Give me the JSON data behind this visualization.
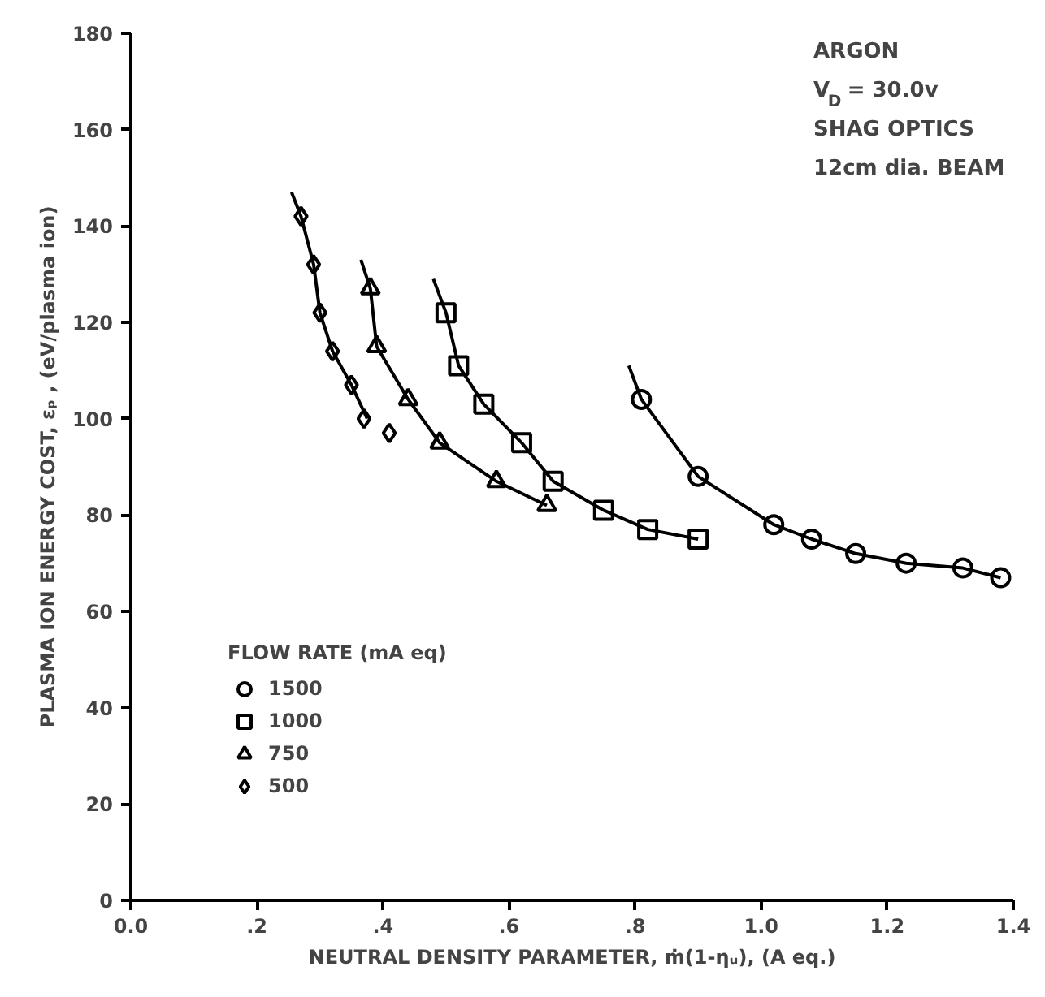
{
  "chart_data": {
    "type": "scatter",
    "xlabel": "NEUTRAL DENSITY PARAMETER, ṁ(1-ηᵤ), (A eq.)",
    "ylabel": "PLASMA ION ENERGY COST, εₚ , (eV/plasma ion)",
    "legend_title": "FLOW RATE (mA eq)",
    "annotations": [
      "ARGON",
      "V$_{D}$ = 30.0v",
      "SHAG OPTICS",
      "12cm dia. BEAM"
    ],
    "xlim": [
      0,
      1.4
    ],
    "ylim": [
      0,
      180
    ],
    "xticks": [
      {
        "value": 0,
        "label": "0.0"
      },
      {
        "value": 0.2,
        "label": ".2"
      },
      {
        "value": 0.4,
        "label": ".4"
      },
      {
        "value": 0.6,
        "label": ".6"
      },
      {
        "value": 0.8,
        "label": ".8"
      },
      {
        "value": 1.0,
        "label": "1.0"
      },
      {
        "value": 1.2,
        "label": "1.2"
      },
      {
        "value": 1.4,
        "label": "1.4"
      }
    ],
    "yticks": [
      0,
      20,
      40,
      60,
      80,
      100,
      120,
      140,
      160,
      180
    ],
    "grid": false,
    "legend": "bottom left",
    "series": [
      {
        "name": "1500",
        "marker": "circle",
        "color": "#000000",
        "x": [
          0.81,
          0.9,
          1.02,
          1.08,
          1.15,
          1.23,
          1.32,
          1.38
        ],
        "values": [
          104,
          88,
          78,
          75,
          72,
          70,
          69,
          67
        ]
      },
      {
        "name": "1000",
        "marker": "square",
        "color": "#000000",
        "x": [
          0.5,
          0.52,
          0.56,
          0.62,
          0.67,
          0.75,
          0.82,
          0.9
        ],
        "values": [
          122,
          111,
          103,
          95,
          87,
          81,
          77,
          75
        ]
      },
      {
        "name": "750",
        "marker": "triangle",
        "color": "#000000",
        "x": [
          0.38,
          0.39,
          0.44,
          0.49,
          0.58,
          0.66
        ],
        "values": [
          127,
          115,
          104,
          95,
          87,
          82
        ]
      },
      {
        "name": "500",
        "marker": "diamond",
        "color": "#000000",
        "x": [
          0.27,
          0.29,
          0.3,
          0.32,
          0.35,
          0.37,
          0.41
        ],
        "values": [
          142,
          132,
          122,
          114,
          107,
          100,
          97
        ]
      },
      {
        "type": "line",
        "color": "#000000",
        "x": [
          0.79,
          0.81,
          0.9,
          1.02,
          1.08,
          1.15,
          1.23,
          1.32,
          1.38
        ],
        "values": [
          111,
          104,
          88,
          78,
          75,
          72,
          70,
          69,
          67
        ]
      },
      {
        "type": "line",
        "color": "#000000",
        "x": [
          0.48,
          0.5,
          0.52,
          0.56,
          0.62,
          0.67,
          0.75,
          0.82,
          0.9
        ],
        "values": [
          129,
          122,
          111,
          103,
          95,
          87,
          81,
          77,
          75
        ]
      },
      {
        "type": "line",
        "color": "#000000",
        "x": [
          0.365,
          0.38,
          0.39,
          0.44,
          0.49,
          0.58,
          0.66
        ],
        "values": [
          133,
          127,
          115,
          104,
          95,
          87,
          82
        ]
      },
      {
        "type": "line",
        "color": "#000000",
        "x": [
          0.255,
          0.27,
          0.29,
          0.3,
          0.32,
          0.35,
          0.375
        ],
        "values": [
          147,
          142,
          132,
          122,
          114,
          107,
          100
        ]
      }
    ]
  }
}
